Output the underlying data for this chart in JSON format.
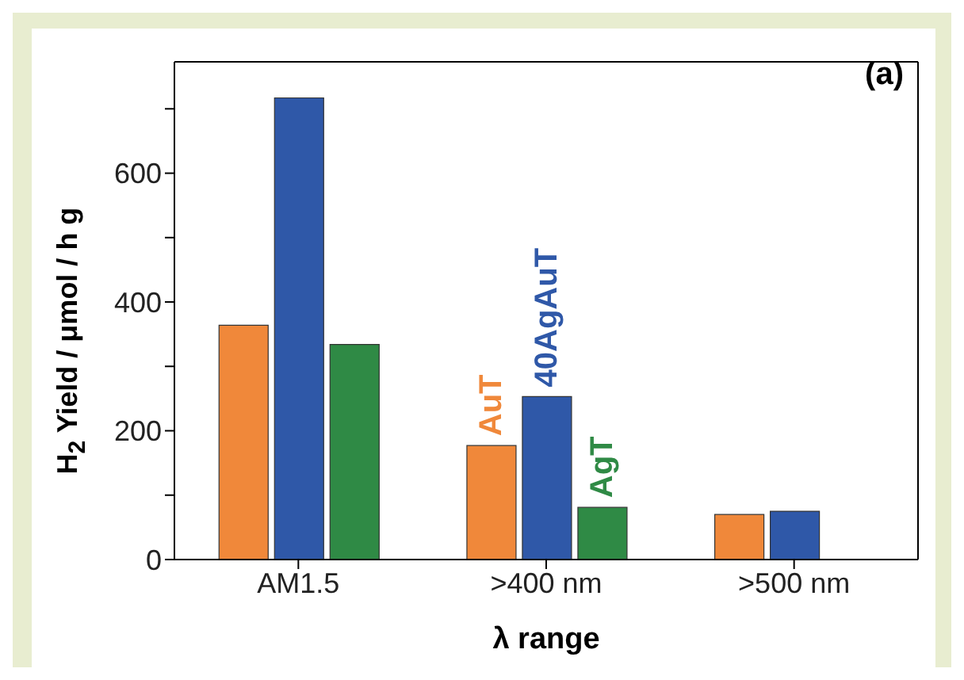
{
  "chart_data": {
    "type": "bar",
    "xlabel": "λ range",
    "ylabel": "H$_{2}$ Yield / μmol / h g",
    "annotations": [
      "(a)"
    ],
    "categories": [
      "AM1.5",
      ">400 nm",
      ">500 nm"
    ],
    "series": [
      {
        "name": "AuT",
        "color": "#f0883a",
        "values": [
          364,
          177,
          70
        ]
      },
      {
        "name": "40AgAuT",
        "color": "#2f58a8",
        "values": [
          717,
          253,
          75
        ]
      },
      {
        "name": "AgT",
        "color": "#2f8a45",
        "values": [
          334,
          81,
          null
        ]
      }
    ],
    "ylim": [
      0,
      773
    ],
    "yticks": [
      0,
      {
        "value": 100,
        "label": null
      },
      200,
      {
        "value": 300,
        "label": null
      },
      400,
      {
        "value": 500,
        "label": null
      },
      600,
      {
        "value": 700,
        "label": null
      }
    ],
    "legend": false,
    "grid": false
  }
}
